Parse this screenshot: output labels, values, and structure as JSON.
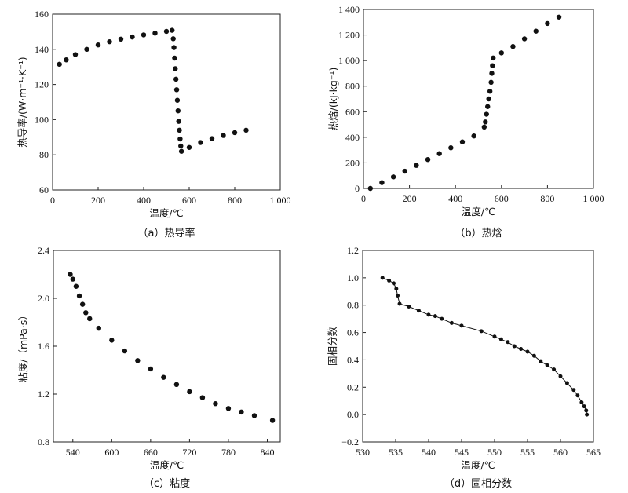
{
  "chart_data": [
    {
      "id": "a",
      "type": "scatter",
      "caption": "（a）热导率",
      "xlabel": "温度/℃",
      "ylabel": "热导率/(W·m⁻¹·K⁻¹)",
      "xlim": [
        0,
        1000
      ],
      "ylim": [
        60,
        160
      ],
      "xticks": [
        0,
        200,
        400,
        600,
        800,
        1000
      ],
      "xtick_labels": [
        "0",
        "200",
        "400",
        "600",
        "800",
        "1 000"
      ],
      "yticks": [
        60,
        80,
        100,
        120,
        140,
        160
      ],
      "ytick_labels": [
        "60",
        "80",
        "100",
        "120",
        "140",
        "160"
      ],
      "connect": false,
      "points": [
        [
          30,
          131.5
        ],
        [
          60,
          134.0
        ],
        [
          100,
          137.0
        ],
        [
          150,
          140.0
        ],
        [
          200,
          142.5
        ],
        [
          250,
          144.3
        ],
        [
          300,
          145.8
        ],
        [
          350,
          147.0
        ],
        [
          400,
          148.2
        ],
        [
          450,
          149.2
        ],
        [
          500,
          150.2
        ],
        [
          525,
          150.8
        ],
        [
          530,
          146.0
        ],
        [
          533,
          141.0
        ],
        [
          536,
          135.0
        ],
        [
          539,
          129.0
        ],
        [
          542,
          123.0
        ],
        [
          545,
          117.0
        ],
        [
          548,
          111.0
        ],
        [
          551,
          105.0
        ],
        [
          554,
          99.0
        ],
        [
          557,
          94.0
        ],
        [
          560,
          89.0
        ],
        [
          563,
          85.0
        ],
        [
          566,
          82.0
        ],
        [
          600,
          84.2
        ],
        [
          650,
          87.0
        ],
        [
          700,
          89.2
        ],
        [
          750,
          91.0
        ],
        [
          800,
          92.6
        ],
        [
          850,
          94.0
        ]
      ]
    },
    {
      "id": "b",
      "type": "scatter",
      "caption": "（b）热焓",
      "xlabel": "温度/℃",
      "ylabel": "热焓/(kJ·kg⁻¹)",
      "xlim": [
        0,
        1000
      ],
      "ylim": [
        0,
        1400
      ],
      "xticks": [
        0,
        200,
        400,
        600,
        800,
        1000
      ],
      "xtick_labels": [
        "0",
        "200",
        "400",
        "600",
        "800",
        "1 000"
      ],
      "yticks": [
        0,
        200,
        400,
        600,
        800,
        1000,
        1200,
        1400
      ],
      "ytick_labels": [
        "0",
        "200",
        "400",
        "600",
        "800",
        "1 000",
        "1 200",
        "1 400"
      ],
      "connect": false,
      "points": [
        [
          30,
          0
        ],
        [
          80,
          45
        ],
        [
          130,
          90
        ],
        [
          180,
          135
        ],
        [
          230,
          180
        ],
        [
          280,
          226
        ],
        [
          330,
          272
        ],
        [
          380,
          318
        ],
        [
          430,
          364
        ],
        [
          480,
          410
        ],
        [
          525,
          480
        ],
        [
          530,
          520
        ],
        [
          535,
          580
        ],
        [
          540,
          640
        ],
        [
          545,
          700
        ],
        [
          550,
          760
        ],
        [
          555,
          830
        ],
        [
          558,
          900
        ],
        [
          561,
          960
        ],
        [
          564,
          1020
        ],
        [
          600,
          1060
        ],
        [
          650,
          1110
        ],
        [
          700,
          1170
        ],
        [
          750,
          1230
        ],
        [
          800,
          1290
        ],
        [
          850,
          1340
        ]
      ]
    },
    {
      "id": "c",
      "type": "scatter",
      "caption": "（c）粘度",
      "xlabel": "温度/℃",
      "ylabel": "粘度/（mPa·s）",
      "xlim": [
        510,
        860
      ],
      "ylim": [
        0.8,
        2.4
      ],
      "xticks": [
        540,
        600,
        660,
        720,
        780,
        840
      ],
      "xtick_labels": [
        "540",
        "600",
        "660",
        "720",
        "780",
        "840"
      ],
      "yticks": [
        0.8,
        1.2,
        1.6,
        2.0,
        2.4
      ],
      "ytick_labels": [
        "0.8",
        "1.2",
        "1.6",
        "2.0",
        "2.4"
      ],
      "connect": false,
      "points": [
        [
          536,
          2.2
        ],
        [
          540,
          2.16
        ],
        [
          545,
          2.1
        ],
        [
          550,
          2.02
        ],
        [
          555,
          1.95
        ],
        [
          560,
          1.88
        ],
        [
          566,
          1.83
        ],
        [
          580,
          1.75
        ],
        [
          600,
          1.65
        ],
        [
          620,
          1.56
        ],
        [
          640,
          1.48
        ],
        [
          660,
          1.41
        ],
        [
          680,
          1.34
        ],
        [
          700,
          1.28
        ],
        [
          720,
          1.22
        ],
        [
          740,
          1.17
        ],
        [
          760,
          1.12
        ],
        [
          780,
          1.08
        ],
        [
          800,
          1.05
        ],
        [
          820,
          1.02
        ],
        [
          848,
          0.98
        ]
      ]
    },
    {
      "id": "d",
      "type": "line",
      "caption": "（d）固相分数",
      "xlabel": "温度/℃",
      "ylabel": "固相分数",
      "xlim": [
        530,
        565
      ],
      "ylim": [
        -0.2,
        1.2
      ],
      "xticks": [
        530,
        535,
        540,
        545,
        550,
        555,
        560,
        565
      ],
      "xtick_labels": [
        "530",
        "535",
        "540",
        "545",
        "550",
        "555",
        "560",
        "565"
      ],
      "yticks": [
        -0.2,
        0.0,
        0.2,
        0.4,
        0.6,
        0.8,
        1.0,
        1.2
      ],
      "ytick_labels": [
        "−0.2",
        "0.0",
        "0.2",
        "0.4",
        "0.6",
        "0.8",
        "1.0",
        "1.2"
      ],
      "connect": true,
      "points": [
        [
          533,
          1.0
        ],
        [
          534,
          0.98
        ],
        [
          534.7,
          0.96
        ],
        [
          535.1,
          0.92
        ],
        [
          535.3,
          0.87
        ],
        [
          535.6,
          0.81
        ],
        [
          537,
          0.79
        ],
        [
          538.5,
          0.76
        ],
        [
          540,
          0.73
        ],
        [
          541,
          0.72
        ],
        [
          542,
          0.7
        ],
        [
          543.5,
          0.67
        ],
        [
          545,
          0.65
        ],
        [
          548,
          0.61
        ],
        [
          550,
          0.57
        ],
        [
          551,
          0.55
        ],
        [
          552,
          0.53
        ],
        [
          553,
          0.5
        ],
        [
          554,
          0.48
        ],
        [
          555,
          0.46
        ],
        [
          556,
          0.43
        ],
        [
          557,
          0.39
        ],
        [
          558,
          0.36
        ],
        [
          559,
          0.33
        ],
        [
          560,
          0.28
        ],
        [
          561,
          0.23
        ],
        [
          562,
          0.18
        ],
        [
          562.6,
          0.14
        ],
        [
          563.2,
          0.09
        ],
        [
          563.6,
          0.06
        ],
        [
          563.9,
          0.03
        ],
        [
          564,
          0.0
        ]
      ]
    }
  ]
}
